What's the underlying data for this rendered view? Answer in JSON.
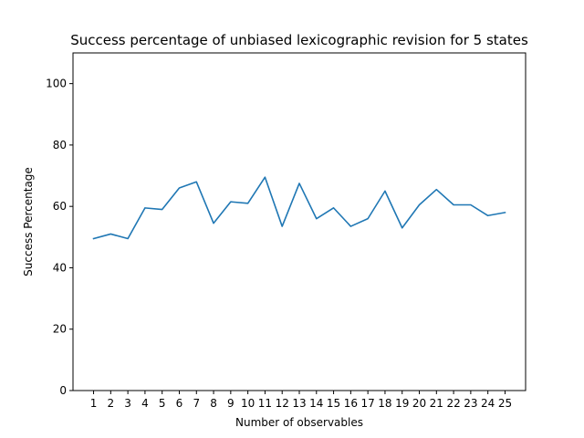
{
  "chart_data": {
    "type": "line",
    "title": "Success percentage of unbiased lexicographic revision for 5 states",
    "xlabel": "Number of observables",
    "ylabel": "Success Percentage",
    "x": [
      1,
      2,
      3,
      4,
      5,
      6,
      7,
      8,
      9,
      10,
      11,
      12,
      13,
      14,
      15,
      16,
      17,
      18,
      19,
      20,
      21,
      22,
      23,
      24,
      25
    ],
    "x_tick_labels": [
      "1",
      "2",
      "3",
      "4",
      "5",
      "6",
      "7",
      "8",
      "9",
      "10",
      "11",
      "12",
      "13",
      "14",
      "15",
      "16",
      "17",
      "18",
      "19",
      "20",
      "21",
      "22",
      "23",
      "24",
      "25"
    ],
    "y_ticks": [
      0,
      20,
      40,
      60,
      80,
      100
    ],
    "y_tick_labels": [
      "0",
      "20",
      "40",
      "60",
      "80",
      "100"
    ],
    "xlim": [
      -0.2,
      26.2
    ],
    "ylim": [
      0,
      110
    ],
    "grid": false,
    "series": [
      {
        "color": "#1f77b4",
        "values": [
          49.5,
          51,
          49.5,
          59.5,
          59,
          66,
          68,
          54.5,
          61.5,
          61,
          69.5,
          53.5,
          67.5,
          56,
          59.5,
          53.5,
          56,
          65,
          53,
          60.5,
          65.5,
          60.5,
          60.5,
          57,
          58
        ]
      }
    ]
  }
}
